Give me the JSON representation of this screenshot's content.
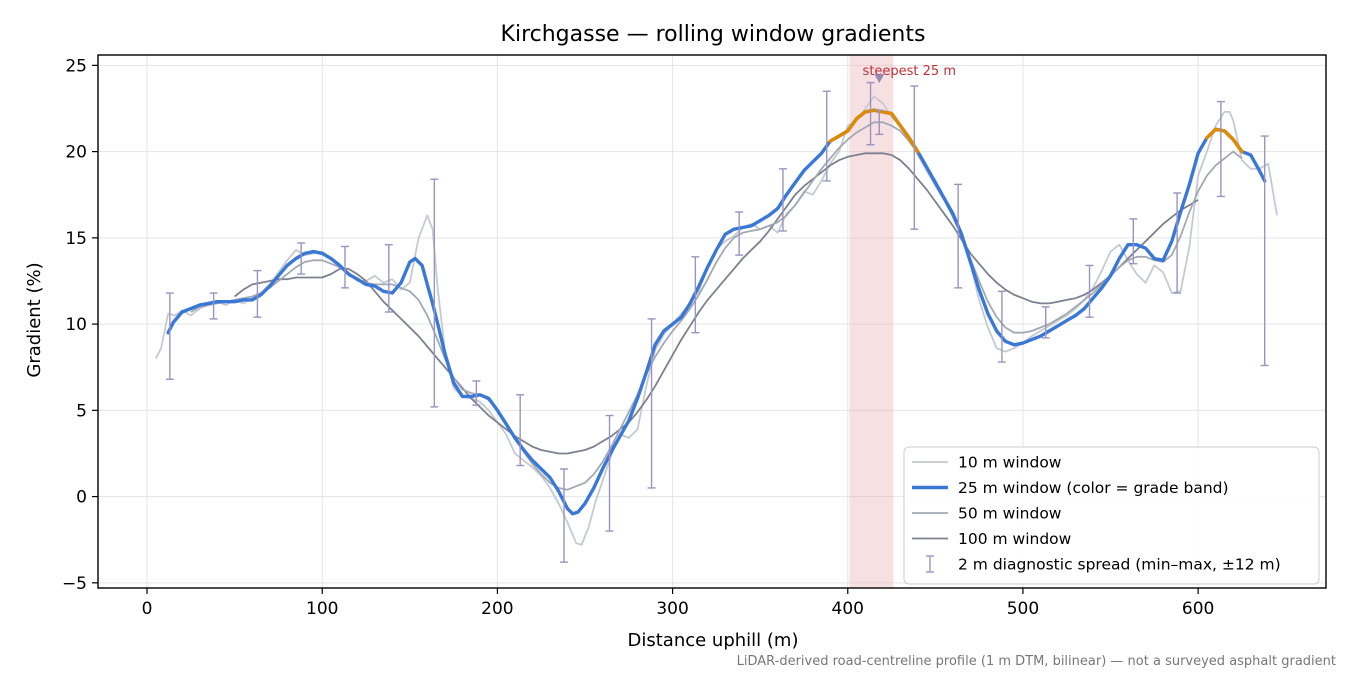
{
  "chart_data": {
    "type": "line",
    "title": "Kirchgasse — rolling window gradients",
    "xlabel": "Distance uphill (m)",
    "ylabel": "Gradient (%)",
    "caption": "LiDAR-derived road-centreline profile (1 m DTM, bilinear) — not a surveyed asphalt gradient",
    "xlim": [
      -28,
      673
    ],
    "ylim": [
      -5.3,
      25.6
    ],
    "xticks": [
      0,
      100,
      200,
      300,
      400,
      500,
      600
    ],
    "yticks": [
      -5,
      0,
      5,
      10,
      15,
      20,
      25
    ],
    "ytick_labels": [
      "−5",
      "0",
      "5",
      "10",
      "15",
      "20",
      "25"
    ],
    "grid": true,
    "legend_position": "lower right",
    "steepest": {
      "label": "steepest 25 m",
      "x_start": 401,
      "x_end": 426,
      "marker_x": 418,
      "marker_y": 24.2
    },
    "colors": {
      "band": "#e8a7ad",
      "steep_grade": "#e08a00",
      "base_grade": "#3a78d8",
      "annotation": "#c0303a",
      "errorbar": "#9b93c0"
    },
    "grade_band_threshold": 20,
    "series": [
      {
        "name": "10 m window",
        "color": "#c5cad1",
        "width": 1.8,
        "x": [
          5,
          8,
          12,
          16,
          20,
          25,
          30,
          35,
          40,
          45,
          50,
          55,
          60,
          65,
          70,
          75,
          80,
          85,
          90,
          95,
          100,
          105,
          110,
          115,
          120,
          125,
          130,
          135,
          140,
          145,
          150,
          155,
          160,
          163,
          166,
          170,
          175,
          180,
          185,
          190,
          195,
          200,
          205,
          210,
          215,
          220,
          225,
          230,
          235,
          240,
          245,
          248,
          252,
          256,
          260,
          265,
          270,
          275,
          280,
          285,
          290,
          295,
          300,
          305,
          310,
          315,
          320,
          325,
          330,
          335,
          340,
          345,
          350,
          355,
          360,
          365,
          370,
          375,
          380,
          385,
          390,
          395,
          400,
          405,
          410,
          415,
          420,
          425,
          430,
          435,
          440,
          445,
          450,
          455,
          460,
          465,
          470,
          475,
          480,
          485,
          490,
          495,
          500,
          505,
          510,
          515,
          520,
          525,
          530,
          535,
          540,
          545,
          550,
          555,
          560,
          565,
          570,
          575,
          580,
          585,
          590,
          595,
          600,
          605,
          610,
          615,
          618,
          620,
          625,
          630,
          635,
          640,
          645
        ],
        "y": [
          8.0,
          8.6,
          10.6,
          10.5,
          10.8,
          10.5,
          10.9,
          11.1,
          11.3,
          11.1,
          11.4,
          11.2,
          11.5,
          11.8,
          12.3,
          13.0,
          13.7,
          14.3,
          14.0,
          14.1,
          14.2,
          13.8,
          13.3,
          13.0,
          12.5,
          12.5,
          12.8,
          12.4,
          12.6,
          12.0,
          12.4,
          15.0,
          16.3,
          15.5,
          12.0,
          8.5,
          6.3,
          5.8,
          5.7,
          5.5,
          5.0,
          4.3,
          3.6,
          2.5,
          2.1,
          1.7,
          1.2,
          0.5,
          -0.4,
          -1.5,
          -2.7,
          -2.8,
          -1.8,
          -0.3,
          0.9,
          2.4,
          3.6,
          3.4,
          3.9,
          6.4,
          8.5,
          9.4,
          10.0,
          10.6,
          11.2,
          11.9,
          13.3,
          14.3,
          14.8,
          15.1,
          15.6,
          15.8,
          15.5,
          15.7,
          15.3,
          16.4,
          16.9,
          17.7,
          17.5,
          18.3,
          19.3,
          20.0,
          21.5,
          21.8,
          22.5,
          23.2,
          22.8,
          22.0,
          21.5,
          20.8,
          19.8,
          18.9,
          18.0,
          17.2,
          16.5,
          15.0,
          13.5,
          11.4,
          9.8,
          8.6,
          8.4,
          8.6,
          8.9,
          9.3,
          9.6,
          9.9,
          10.2,
          10.5,
          10.9,
          11.4,
          12.1,
          13.1,
          14.2,
          14.6,
          13.7,
          12.9,
          12.4,
          13.4,
          13.0,
          11.8,
          11.9,
          14.5,
          18.6,
          20.0,
          21.5,
          22.3,
          22.3,
          21.8,
          19.5,
          19.0,
          19.0,
          19.3,
          16.3
        ]
      },
      {
        "name": "25 m window (color = grade band)",
        "color": "#3a78d8",
        "width": 3.4,
        "x": [
          12,
          15,
          20,
          25,
          30,
          35,
          40,
          45,
          50,
          55,
          60,
          65,
          70,
          75,
          80,
          85,
          90,
          95,
          100,
          105,
          110,
          115,
          120,
          125,
          130,
          135,
          140,
          145,
          150,
          153,
          157,
          160,
          163,
          166,
          170,
          175,
          180,
          185,
          190,
          195,
          200,
          205,
          210,
          215,
          220,
          225,
          230,
          235,
          240,
          243,
          246,
          250,
          255,
          260,
          265,
          270,
          275,
          280,
          285,
          290,
          295,
          300,
          305,
          310,
          315,
          320,
          325,
          330,
          335,
          340,
          345,
          350,
          355,
          360,
          365,
          370,
          375,
          380,
          385,
          390,
          395,
          400,
          405,
          410,
          415,
          420,
          425,
          430,
          435,
          440,
          445,
          450,
          455,
          460,
          465,
          470,
          475,
          480,
          485,
          490,
          495,
          500,
          505,
          510,
          515,
          520,
          525,
          530,
          535,
          540,
          545,
          550,
          555,
          560,
          565,
          570,
          575,
          580,
          585,
          590,
          595,
          600,
          605,
          610,
          615,
          620,
          625,
          630,
          635,
          638
        ],
        "y": [
          9.5,
          10.1,
          10.7,
          10.9,
          11.1,
          11.2,
          11.3,
          11.3,
          11.3,
          11.4,
          11.4,
          11.7,
          12.2,
          12.8,
          13.4,
          13.8,
          14.1,
          14.2,
          14.1,
          13.8,
          13.4,
          12.9,
          12.6,
          12.3,
          12.2,
          11.9,
          11.8,
          12.4,
          13.6,
          13.8,
          13.4,
          12.3,
          11.2,
          10.0,
          8.3,
          6.6,
          5.8,
          5.8,
          5.9,
          5.7,
          5.0,
          4.2,
          3.4,
          2.7,
          2.1,
          1.6,
          1.1,
          0.3,
          -0.7,
          -1.0,
          -0.9,
          -0.4,
          0.5,
          1.6,
          2.6,
          3.5,
          4.4,
          5.7,
          7.2,
          8.8,
          9.6,
          10.0,
          10.4,
          11.2,
          12.2,
          13.3,
          14.3,
          15.2,
          15.5,
          15.6,
          15.7,
          16.0,
          16.3,
          16.7,
          17.5,
          18.2,
          18.9,
          19.4,
          19.9,
          20.6,
          20.9,
          21.2,
          21.9,
          22.3,
          22.4,
          22.3,
          22.2,
          21.5,
          20.8,
          20.0,
          19.1,
          18.2,
          17.3,
          16.4,
          15.2,
          13.6,
          12.0,
          10.6,
          9.6,
          9.0,
          8.8,
          8.9,
          9.1,
          9.3,
          9.6,
          9.9,
          10.2,
          10.5,
          10.9,
          11.5,
          12.1,
          12.8,
          13.8,
          14.6,
          14.6,
          14.4,
          13.8,
          13.7,
          14.8,
          16.5,
          18.1,
          19.9,
          20.8,
          21.3,
          21.2,
          20.7,
          20.0,
          19.8,
          18.9,
          18.3
        ]
      },
      {
        "name": "50 m window",
        "color": "#a3a9b3",
        "width": 1.8,
        "x": [
          25,
          30,
          35,
          40,
          45,
          50,
          55,
          60,
          65,
          70,
          75,
          80,
          85,
          90,
          95,
          100,
          105,
          110,
          115,
          120,
          125,
          130,
          135,
          140,
          145,
          150,
          155,
          160,
          165,
          170,
          175,
          180,
          185,
          190,
          195,
          200,
          205,
          210,
          215,
          220,
          225,
          230,
          235,
          240,
          245,
          250,
          255,
          260,
          265,
          270,
          275,
          280,
          285,
          290,
          295,
          300,
          305,
          310,
          315,
          320,
          325,
          330,
          335,
          340,
          345,
          350,
          355,
          360,
          365,
          370,
          375,
          380,
          385,
          390,
          395,
          400,
          405,
          410,
          415,
          420,
          425,
          430,
          435,
          440,
          445,
          450,
          455,
          460,
          465,
          470,
          475,
          480,
          485,
          490,
          495,
          500,
          505,
          510,
          515,
          520,
          525,
          530,
          535,
          540,
          545,
          550,
          555,
          560,
          565,
          570,
          575,
          580,
          585,
          590,
          595,
          600,
          605,
          610,
          615,
          620,
          625
        ],
        "y": [
          10.7,
          11.0,
          11.1,
          11.2,
          11.3,
          11.4,
          11.5,
          11.6,
          11.8,
          12.1,
          12.5,
          12.9,
          13.3,
          13.6,
          13.7,
          13.7,
          13.5,
          13.3,
          12.9,
          12.6,
          12.4,
          12.3,
          12.3,
          12.3,
          12.1,
          11.9,
          11.4,
          10.5,
          9.3,
          8.0,
          6.9,
          6.2,
          6.0,
          5.9,
          5.6,
          5.0,
          4.2,
          3.4,
          2.6,
          1.9,
          1.3,
          0.8,
          0.5,
          0.4,
          0.6,
          0.8,
          1.3,
          2.0,
          2.9,
          3.9,
          4.9,
          5.9,
          7.1,
          8.1,
          8.9,
          9.6,
          10.2,
          10.9,
          11.7,
          12.6,
          13.6,
          14.4,
          15.0,
          15.3,
          15.4,
          15.5,
          15.7,
          15.9,
          16.3,
          16.9,
          17.6,
          18.3,
          19.0,
          19.6,
          20.2,
          20.7,
          21.1,
          21.4,
          21.7,
          21.7,
          21.5,
          21.2,
          20.6,
          19.9,
          19.1,
          18.2,
          17.2,
          16.2,
          15.1,
          13.8,
          12.5,
          11.3,
          10.4,
          9.8,
          9.5,
          9.5,
          9.6,
          9.8,
          10.0,
          10.3,
          10.6,
          11.0,
          11.4,
          11.8,
          12.3,
          12.8,
          13.3,
          13.7,
          13.9,
          13.9,
          13.7,
          13.6,
          14.0,
          15.1,
          16.5,
          17.7,
          18.6,
          19.2,
          19.6,
          20.0,
          19.6
        ]
      },
      {
        "name": "100 m window",
        "color": "#7b8190",
        "width": 1.8,
        "x": [
          50,
          55,
          60,
          65,
          70,
          75,
          80,
          85,
          90,
          95,
          100,
          105,
          110,
          115,
          120,
          125,
          130,
          135,
          140,
          145,
          150,
          155,
          160,
          165,
          170,
          175,
          180,
          185,
          190,
          195,
          200,
          205,
          210,
          215,
          220,
          225,
          230,
          235,
          240,
          245,
          250,
          255,
          260,
          265,
          270,
          275,
          280,
          285,
          290,
          295,
          300,
          305,
          310,
          315,
          320,
          325,
          330,
          335,
          340,
          345,
          350,
          355,
          360,
          365,
          370,
          375,
          380,
          385,
          390,
          395,
          400,
          405,
          410,
          415,
          420,
          425,
          430,
          435,
          440,
          445,
          450,
          455,
          460,
          465,
          470,
          475,
          480,
          485,
          490,
          495,
          500,
          505,
          510,
          515,
          520,
          525,
          530,
          535,
          540,
          545,
          550,
          555,
          560,
          565,
          570,
          575,
          580,
          585,
          590,
          595,
          600
        ],
        "y": [
          11.6,
          12.0,
          12.3,
          12.4,
          12.5,
          12.6,
          12.6,
          12.7,
          12.7,
          12.7,
          12.7,
          12.9,
          13.2,
          13.2,
          12.9,
          12.5,
          11.9,
          11.3,
          10.8,
          10.3,
          9.8,
          9.3,
          8.7,
          8.1,
          7.5,
          6.9,
          6.3,
          5.7,
          5.2,
          4.7,
          4.3,
          3.9,
          3.5,
          3.2,
          2.9,
          2.7,
          2.6,
          2.5,
          2.5,
          2.6,
          2.7,
          2.9,
          3.2,
          3.5,
          3.9,
          4.3,
          4.9,
          5.6,
          6.4,
          7.3,
          8.2,
          9.1,
          9.9,
          10.7,
          11.4,
          12.0,
          12.6,
          13.2,
          13.8,
          14.3,
          14.8,
          15.4,
          16.1,
          16.8,
          17.5,
          18.0,
          18.4,
          18.8,
          19.2,
          19.5,
          19.7,
          19.8,
          19.9,
          19.9,
          19.9,
          19.8,
          19.5,
          19.0,
          18.4,
          17.8,
          17.1,
          16.4,
          15.7,
          14.9,
          14.1,
          13.5,
          12.9,
          12.4,
          12.0,
          11.7,
          11.5,
          11.3,
          11.2,
          11.2,
          11.3,
          11.4,
          11.5,
          11.7,
          12.0,
          12.4,
          12.8,
          13.3,
          13.8,
          14.3,
          14.8,
          15.3,
          15.8,
          16.2,
          16.6,
          16.9,
          17.2
        ]
      }
    ],
    "error_bars": {
      "name": "2 m diagnostic spread (min–max, ±12 m)",
      "x": [
        13,
        38,
        63,
        88,
        113,
        138,
        164,
        188,
        213,
        238,
        264,
        288,
        313,
        338,
        363,
        388,
        413,
        418,
        438,
        463,
        488,
        513,
        538,
        563,
        588,
        613,
        638
      ],
      "ymin": [
        6.8,
        10.3,
        10.4,
        12.9,
        12.1,
        10.7,
        5.2,
        5.3,
        1.8,
        -3.8,
        -2.0,
        0.5,
        9.5,
        14.0,
        15.4,
        18.3,
        20.4,
        21.0,
        15.5,
        12.1,
        7.8,
        9.2,
        10.4,
        13.5,
        11.8,
        17.4,
        7.6
      ],
      "ymax": [
        11.8,
        11.8,
        13.1,
        14.7,
        14.5,
        14.6,
        18.4,
        6.7,
        5.9,
        1.6,
        4.7,
        10.3,
        13.9,
        16.5,
        19.0,
        23.5,
        24.0,
        22.4,
        23.8,
        18.1,
        11.9,
        11.0,
        13.4,
        16.1,
        17.6,
        22.9,
        20.9
      ]
    }
  }
}
